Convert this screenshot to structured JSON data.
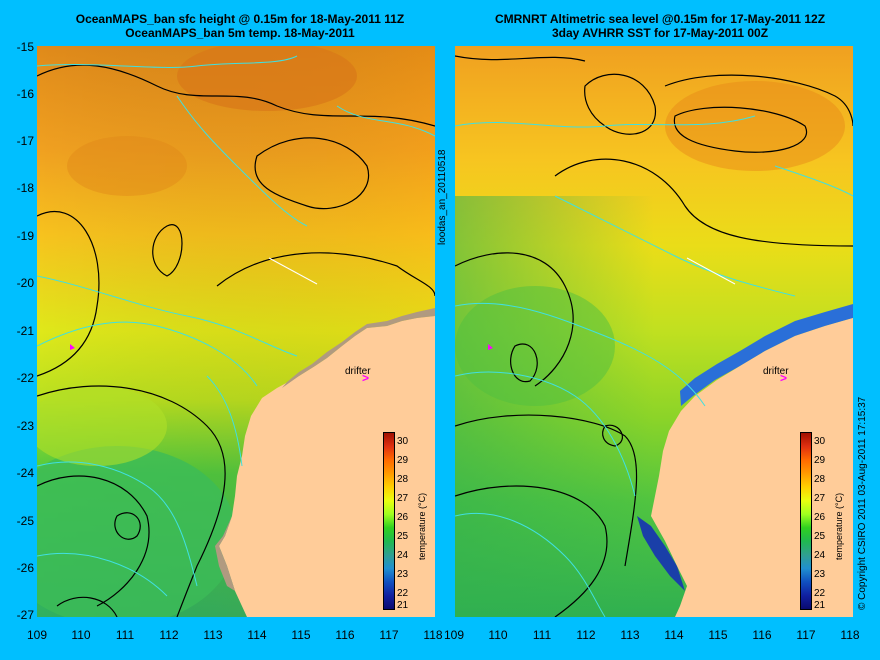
{
  "left_panel": {
    "title_line1": "OceanMAPS_ban sfc height @ 0.15m for 18-May-2011 11Z",
    "title_line2": "OceanMAPS_ban 5m temp. 18-May-2011"
  },
  "right_panel": {
    "title_line1": "CMRNRT Altimetric sea level  @0.15m  for 17-May-2011 12Z",
    "title_line2": "3day AVHRR SST for 17-May-2011 00Z"
  },
  "side_label_left": "loodas_an_20110518",
  "side_label_right": "© Copyright CSIRO 2011   03-Aug-2011 17:15:37",
  "drifter_label": "drifter",
  "drifter_arrow": ">",
  "colorbar": {
    "label": "temperature (°C)",
    "ticks": [
      "30",
      "29",
      "28",
      "27",
      "26",
      "25",
      "24",
      "23",
      "22",
      "21"
    ]
  },
  "axes": {
    "y_ticks": [
      "-15",
      "-16",
      "-17",
      "-18",
      "-19",
      "-20",
      "-21",
      "-22",
      "-23",
      "-24",
      "-25",
      "-26",
      "-27"
    ],
    "x_ticks": [
      "109",
      "110",
      "111",
      "112",
      "113",
      "114",
      "115",
      "116",
      "117",
      "118"
    ]
  },
  "colors": {
    "background": "#00bfff",
    "land": "#ffcc99",
    "contour": "#000000",
    "current_lines": "#40e0e0",
    "drifter": "#ff00ff"
  }
}
